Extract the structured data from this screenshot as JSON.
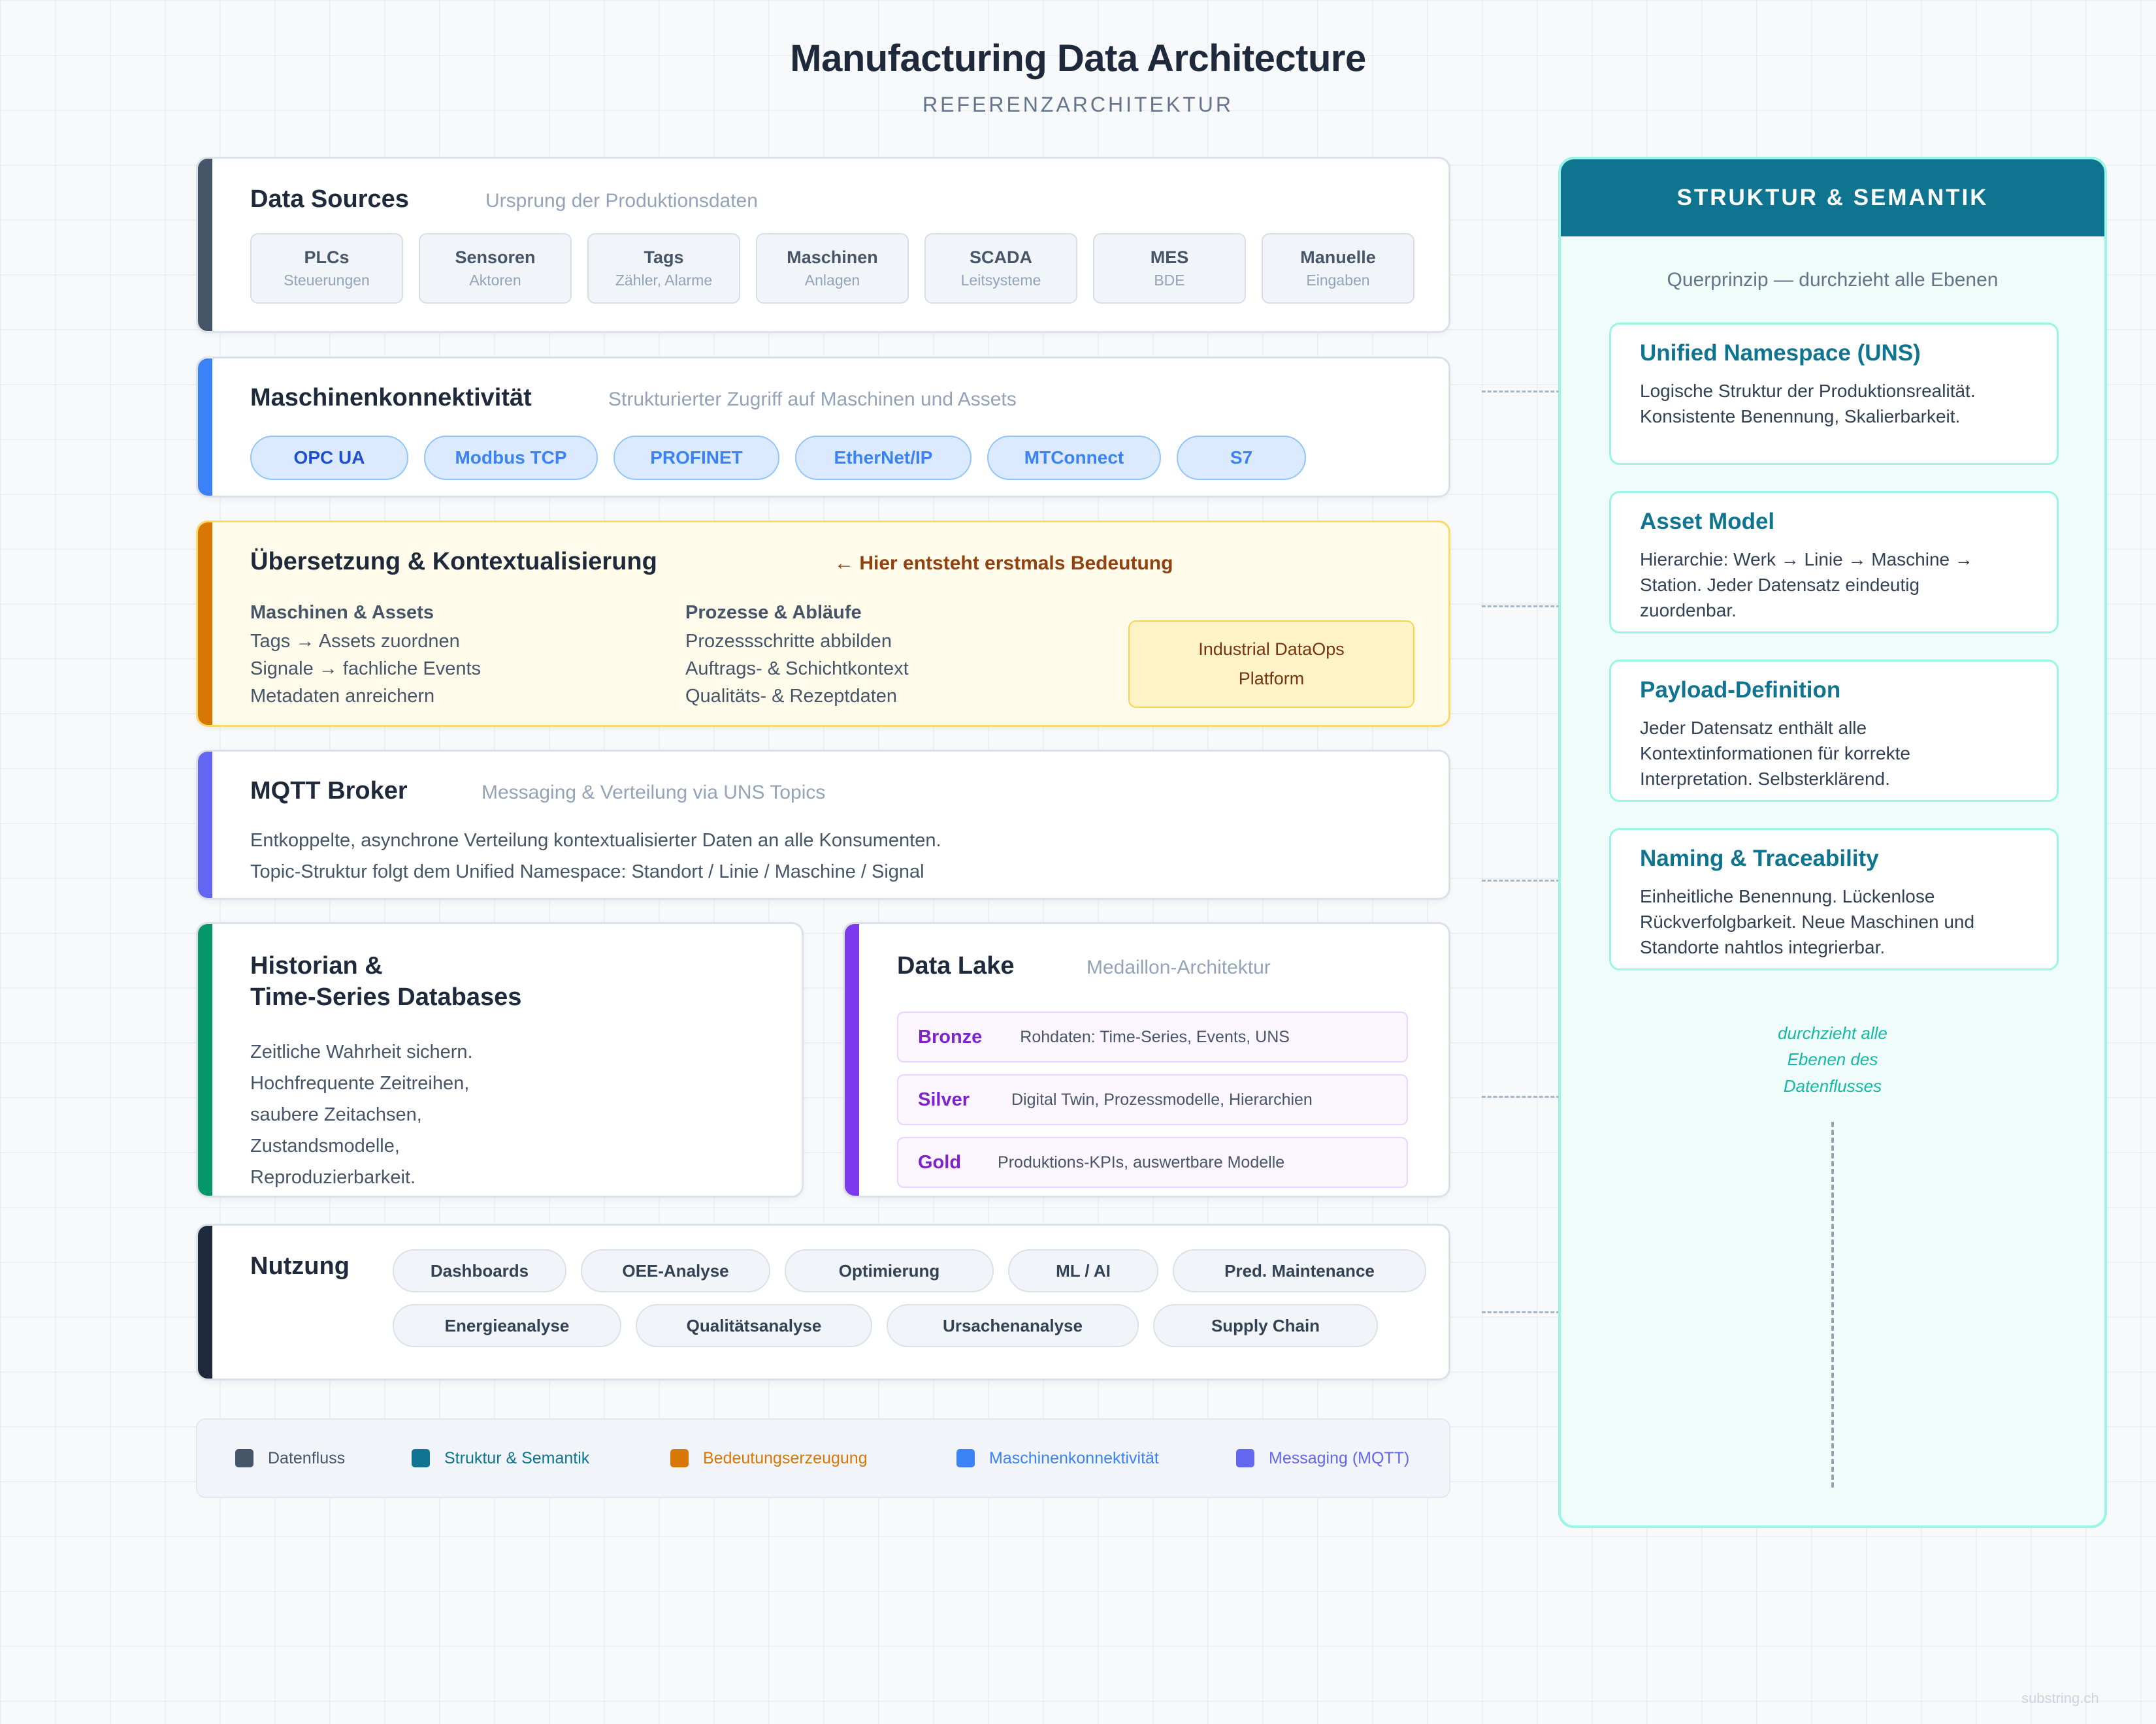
{
  "header": {
    "title": "Manufacturing Data Architecture",
    "subtitle": "REFERENZARCHITEKTUR"
  },
  "colors": {
    "datenfluss": "#475569",
    "struktur": "#0e7490",
    "bedeutung": "#d97706",
    "konnektivitaet": "#3b82f6",
    "messaging": "#6366f1",
    "historian": "#059669",
    "datalake": "#7c3aed",
    "nutzung": "#1e293b"
  },
  "sources": {
    "title": "Data Sources",
    "subtitle": "Ursprung der Produktionsdaten",
    "items": [
      {
        "name": "PLCs",
        "desc": "Steuerungen"
      },
      {
        "name": "Sensoren",
        "desc": "Aktoren"
      },
      {
        "name": "Tags",
        "desc": "Zähler, Alarme"
      },
      {
        "name": "Maschinen",
        "desc": "Anlagen"
      },
      {
        "name": "SCADA",
        "desc": "Leitsysteme"
      },
      {
        "name": "MES",
        "desc": "BDE"
      },
      {
        "name": "Manuelle",
        "desc": "Eingaben"
      }
    ]
  },
  "connectivity": {
    "title": "Maschinenkonnektivität",
    "subtitle": "Strukturierter Zugriff auf Maschinen und Assets",
    "protocols": [
      "OPC UA",
      "Modbus TCP",
      "PROFINET",
      "EtherNet/IP",
      "MTConnect",
      "S7"
    ]
  },
  "translation": {
    "title": "Übersetzung & Kontextualisierung",
    "note": "← Hier entsteht erstmals Bedeutung",
    "col1": {
      "heading": "Maschinen & Assets",
      "lines": [
        "Tags → Assets zuordnen",
        "Signale → fachliche Events",
        "Metadaten anreichern"
      ]
    },
    "col2": {
      "heading": "Prozesse & Abläufe",
      "lines": [
        "Prozessschritte abbilden",
        "Auftrags- & Schichtkontext",
        "Qualitäts- & Rezeptdaten"
      ]
    },
    "platform": [
      "Industrial DataOps",
      "Platform"
    ]
  },
  "mqtt": {
    "title": "MQTT Broker",
    "subtitle": "Messaging & Verteilung via UNS Topics",
    "lines": [
      "Entkoppelte, asynchrone Verteilung kontextualisierter Daten an alle Konsumenten.",
      "Topic-Struktur folgt dem Unified Namespace: Standort / Linie / Maschine / Signal"
    ]
  },
  "historian": {
    "title_lines": [
      "Historian &",
      "Time-Series Databases"
    ],
    "lines": [
      "Zeitliche Wahrheit sichern.",
      "Hochfrequente Zeitreihen,",
      "saubere Zeitachsen,",
      "Zustandsmodelle,",
      "Reproduzierbarkeit."
    ]
  },
  "datalake": {
    "title": "Data Lake",
    "subtitle": "Medaillon-Architektur",
    "tiers": [
      {
        "name": "Bronze",
        "desc": "Rohdaten: Time-Series, Events, UNS"
      },
      {
        "name": "Silver",
        "desc": "Digital Twin, Prozessmodelle, Hierarchien"
      },
      {
        "name": "Gold",
        "desc": "Produktions-KPIs, auswertbare Modelle"
      }
    ]
  },
  "usage": {
    "title": "Nutzung",
    "row1": [
      "Dashboards",
      "OEE-Analyse",
      "Optimierung",
      "ML / AI",
      "Pred. Maintenance"
    ],
    "row2": [
      "Energieanalyse",
      "Qualitätsanalyse",
      "Ursachenanalyse",
      "Supply Chain"
    ]
  },
  "legend": [
    {
      "label": "Datenfluss",
      "color": "#475569",
      "text_color": "#475569"
    },
    {
      "label": "Struktur & Semantik",
      "color": "#0e7490",
      "text_color": "#0e7490"
    },
    {
      "label": "Bedeutungserzeugung",
      "color": "#d97706",
      "text_color": "#d97706"
    },
    {
      "label": "Maschinenkonnektivität",
      "color": "#3b82f6",
      "text_color": "#3b82f6"
    },
    {
      "label": "Messaging (MQTT)",
      "color": "#6366f1",
      "text_color": "#6366f1"
    }
  ],
  "panel": {
    "title": "STRUKTUR & SEMANTIK",
    "subtitle": "Querprinzip — durchzieht alle Ebenen",
    "boxes": [
      {
        "title": "Unified Namespace (UNS)",
        "text": "Logische Struktur der Produktionsrealität. Konsistente Benennung, Skalierbarkeit."
      },
      {
        "title": "Asset Model",
        "text": "Hierarchie: Werk → Linie → Maschine → Station. Jeder Datensatz eindeutig zuordenbar."
      },
      {
        "title": "Payload-Definition",
        "text": "Jeder Datensatz enthält alle Kontextinformationen für korrekte Interpretation. Selbsterklärend."
      },
      {
        "title": "Naming & Traceability",
        "text": "Einheitliche Benennung. Lückenlose Rückverfolgbarkeit. Neue Maschinen und Standorte nahtlos integrierbar."
      }
    ],
    "note_lines": [
      "durchzieht alle",
      "Ebenen des",
      "Datenflusses"
    ]
  },
  "footer": "substring.ch"
}
